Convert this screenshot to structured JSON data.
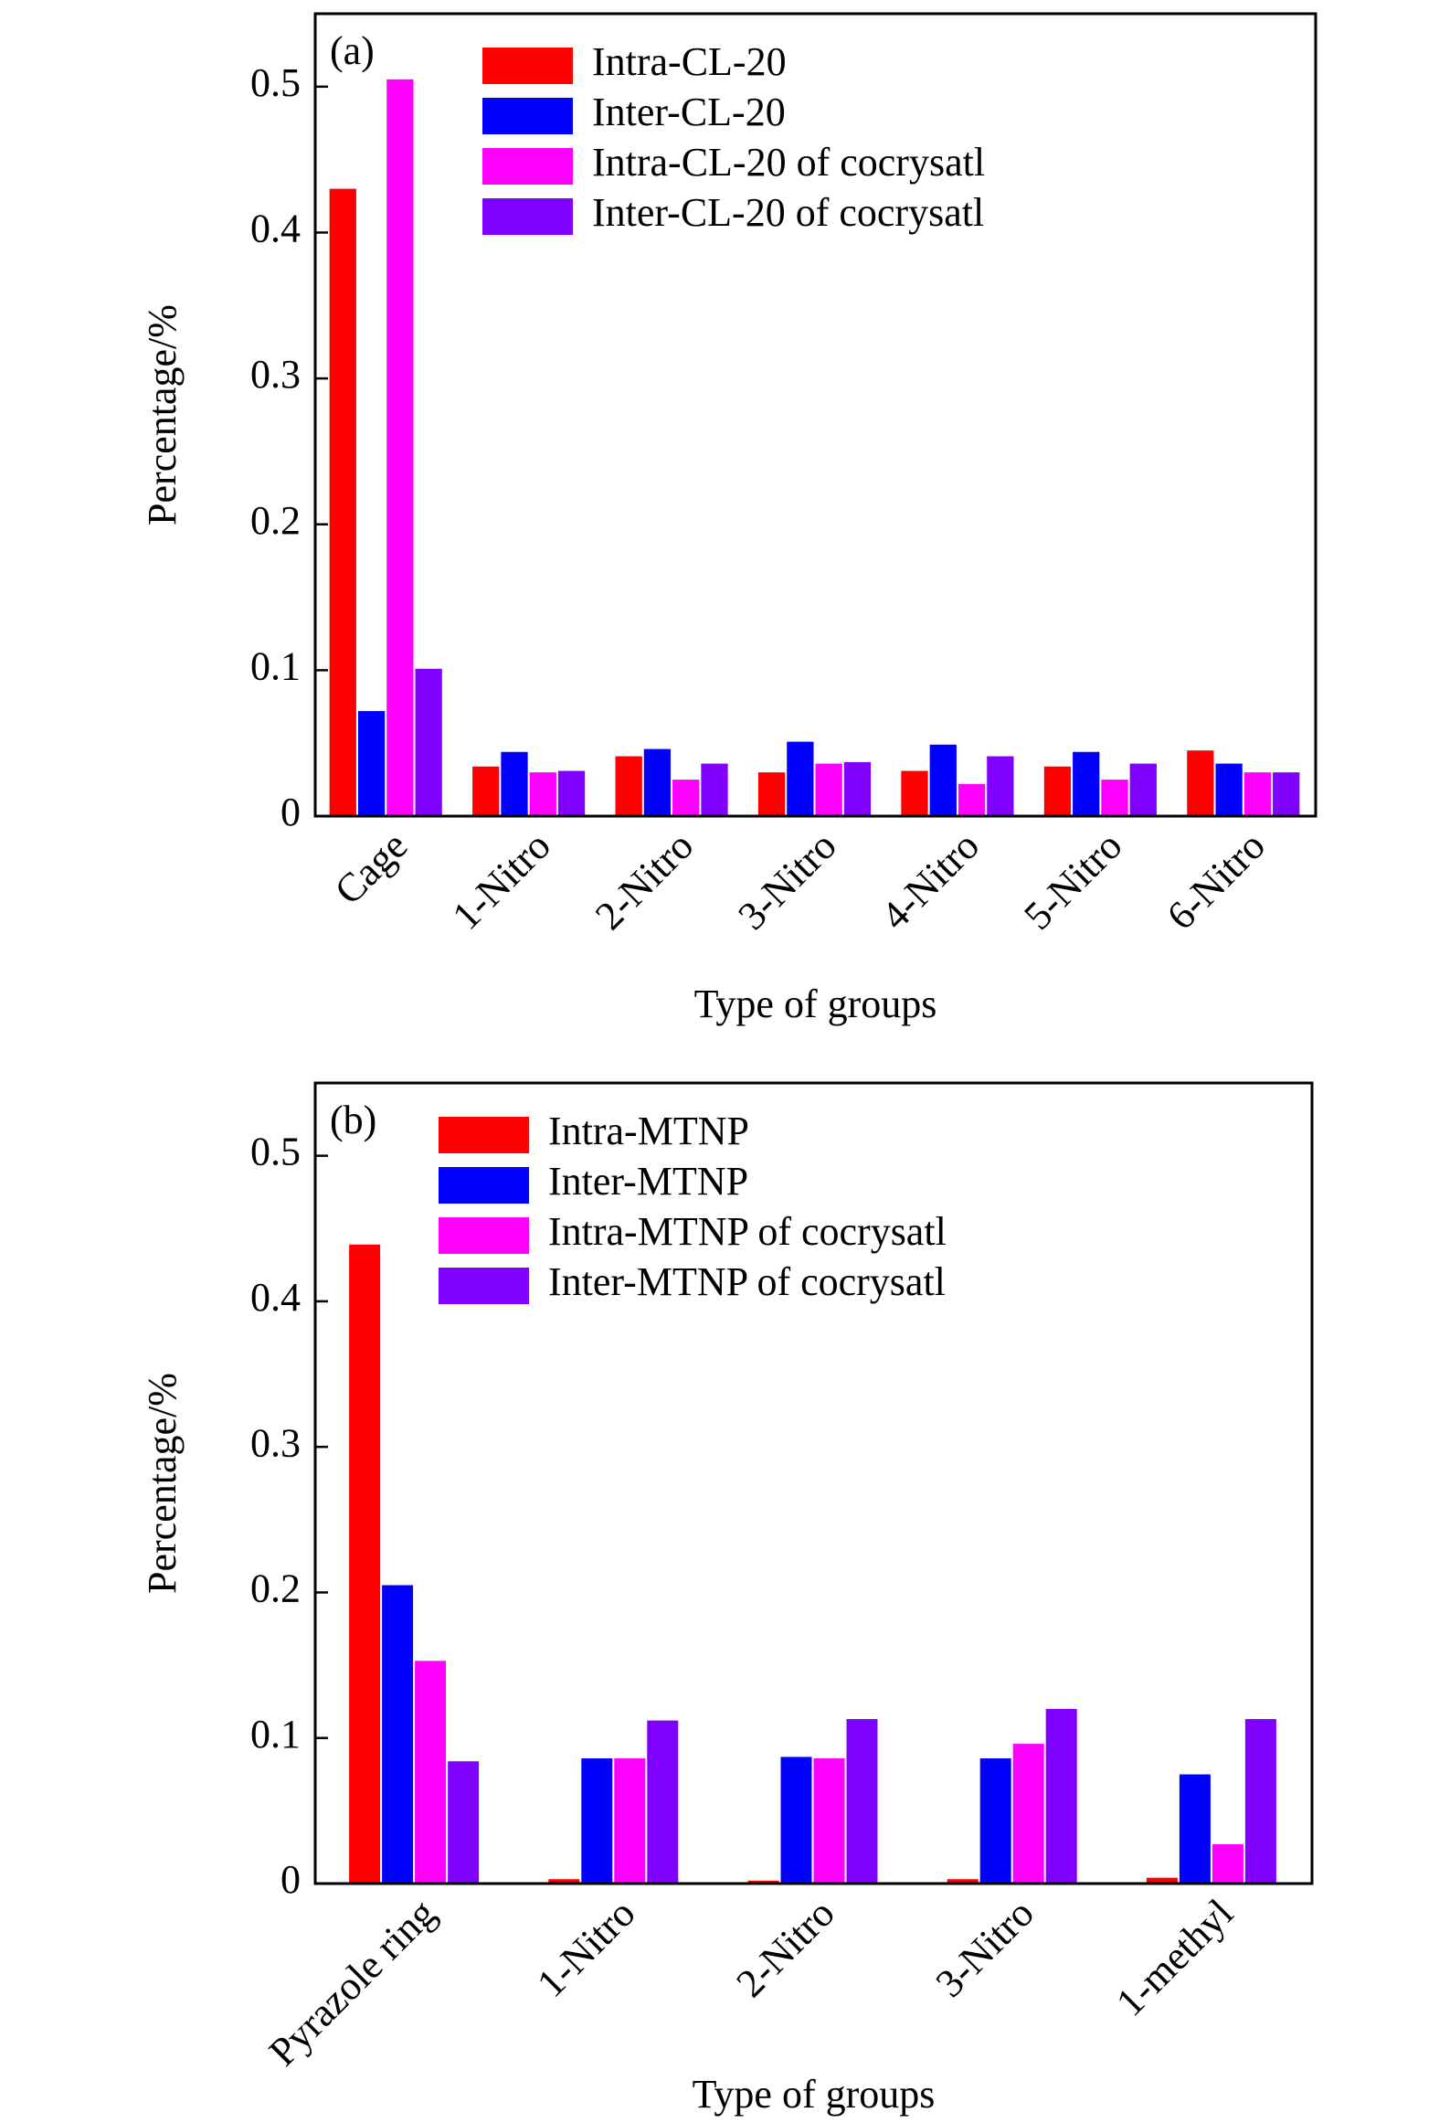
{
  "chart_data": [
    {
      "type": "bar",
      "panel_label": "(a)",
      "y_label": "Percentage/%",
      "x_label": "Type of groups",
      "categories": [
        "Cage",
        "1-Nitro",
        "2-Nitro",
        "3-Nitro",
        "4-Nitro",
        "5-Nitro",
        "6-Nitro"
      ],
      "series": [
        {
          "name": "Intra-CL-20",
          "color": "#ff0000",
          "values": [
            0.43,
            0.034,
            0.041,
            0.03,
            0.031,
            0.034,
            0.045
          ]
        },
        {
          "name": "Inter-CL-20",
          "color": "#0000ff",
          "values": [
            0.072,
            0.044,
            0.046,
            0.051,
            0.049,
            0.044,
            0.036
          ]
        },
        {
          "name": "Intra-CL-20 of cocrysatl",
          "color": "#ff00ff",
          "values": [
            0.505,
            0.03,
            0.025,
            0.036,
            0.022,
            0.025,
            0.03
          ]
        },
        {
          "name": "Inter-CL-20 of cocrysatl",
          "color": "#8000ff",
          "values": [
            0.101,
            0.031,
            0.036,
            0.037,
            0.041,
            0.036,
            0.03
          ]
        }
      ],
      "ylim": [
        0,
        0.55
      ],
      "yticks": [
        0,
        0.1,
        0.2,
        0.3,
        0.4,
        0.5
      ]
    },
    {
      "type": "bar",
      "panel_label": "(b)",
      "y_label": "Percentage/%",
      "x_label": "Type of groups",
      "categories": [
        "Pyrazole ring",
        "1-Nitro",
        "2-Nitro",
        "3-Nitro",
        "1-methyl"
      ],
      "series": [
        {
          "name": "Intra-MTNP",
          "color": "#ff0000",
          "values": [
            0.439,
            0.003,
            0.002,
            0.003,
            0.004
          ]
        },
        {
          "name": "Inter-MTNP",
          "color": "#0000ff",
          "values": [
            0.205,
            0.086,
            0.087,
            0.086,
            0.075
          ]
        },
        {
          "name": "Intra-MTNP of cocrysatl",
          "color": "#ff00ff",
          "values": [
            0.153,
            0.086,
            0.086,
            0.096,
            0.027
          ]
        },
        {
          "name": "Inter-MTNP of cocrysatl",
          "color": "#8000ff",
          "values": [
            0.084,
            0.112,
            0.113,
            0.12,
            0.113
          ]
        }
      ],
      "ylim": [
        0,
        0.55
      ],
      "yticks": [
        0,
        0.1,
        0.2,
        0.3,
        0.4,
        0.5
      ]
    }
  ]
}
